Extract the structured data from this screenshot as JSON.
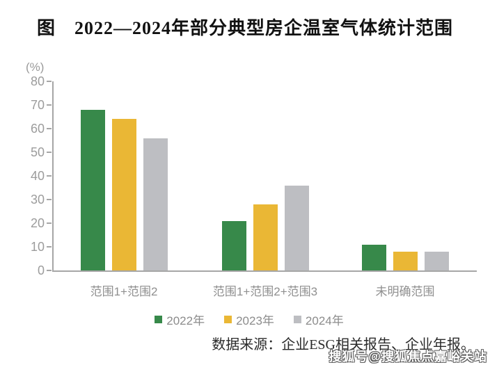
{
  "title": "图　2022—2024年部分典型房企温室气体统计范围",
  "chart_data": {
    "type": "bar",
    "title": "图　2022—2024年部分典型房企温室气体统计范围",
    "unit_label": "(%)",
    "categories": [
      "范围1+范围2",
      "范围1+范围2+范围3",
      "未明确范围"
    ],
    "series": [
      {
        "name": "2022年",
        "color": "#37894A",
        "values": [
          68,
          21,
          11
        ]
      },
      {
        "name": "2023年",
        "color": "#EAB735",
        "values": [
          64,
          28,
          8
        ]
      },
      {
        "name": "2024年",
        "color": "#BDBEC2",
        "values": [
          56,
          36,
          8
        ]
      }
    ],
    "ylim": [
      0,
      80
    ],
    "yticks": [
      0,
      10,
      20,
      30,
      40,
      50,
      60,
      70,
      80
    ],
    "grid": false,
    "legend_position": "bottom"
  },
  "source_note": "数据来源：企业ESG相关报告、企业年报。",
  "watermark": "搜狐号@搜狐焦点嘉峪关站",
  "colors": {
    "axis": "#A6A6A6",
    "tick_label": "#9C9C9C",
    "category_label": "#8F8F8F",
    "legend_label": "#8C8C8C",
    "title_text": "#111111",
    "source_text": "#2A2A2A",
    "series_2022": "#37894A",
    "series_2023": "#EAB735",
    "series_2024": "#BDBEC2"
  }
}
